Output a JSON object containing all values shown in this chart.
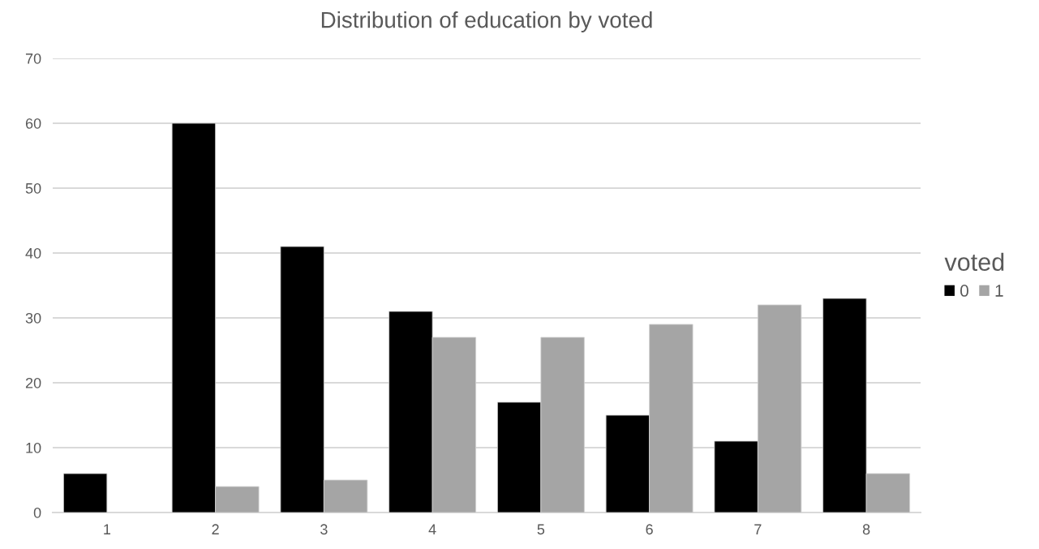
{
  "chart_data": {
    "type": "bar",
    "title": "Distribution of education by voted",
    "legend_title": "voted",
    "categories": [
      "1",
      "2",
      "3",
      "4",
      "5",
      "6",
      "7",
      "8"
    ],
    "series": [
      {
        "name": "0",
        "color": "#000000",
        "values": [
          6,
          60,
          41,
          31,
          17,
          15,
          11,
          33
        ]
      },
      {
        "name": "1",
        "color": "#a5a5a5",
        "values": [
          null,
          4,
          5,
          27,
          27,
          29,
          32,
          6
        ]
      }
    ],
    "ylim": [
      0,
      70
    ],
    "yticks": [
      0,
      10,
      20,
      30,
      40,
      50,
      60,
      70
    ],
    "grid": "y",
    "legend": "right"
  }
}
